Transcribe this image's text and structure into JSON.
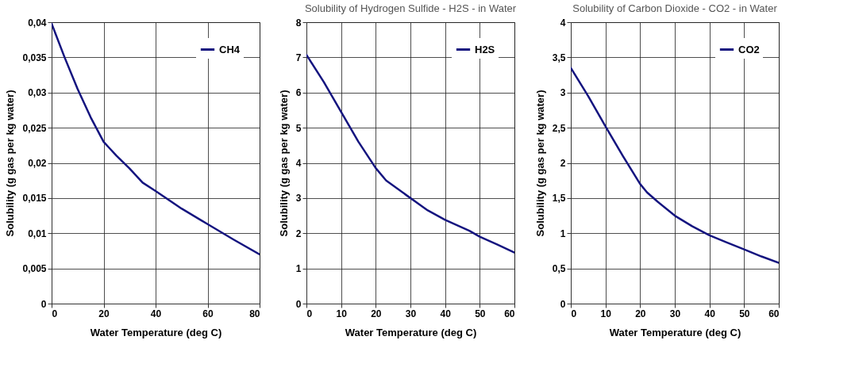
{
  "chart_data": [
    {
      "type": "line",
      "xlabel": "Water Temperature (deg C)",
      "ylabel": "Solubility (g gas per kg water)",
      "xlim": [
        0,
        80
      ],
      "xticks": [
        0,
        20,
        40,
        60,
        80
      ],
      "ylim": [
        0,
        0.04
      ],
      "yticks": [
        0,
        {
          "value": 0.005,
          "label": "0,005"
        },
        {
          "value": 0.01,
          "label": "0,01"
        },
        {
          "value": 0.015,
          "label": "0,015"
        },
        {
          "value": 0.02,
          "label": "0,02"
        },
        {
          "value": 0.025,
          "label": "0,025"
        },
        {
          "value": 0.03,
          "label": "0,03"
        },
        {
          "value": 0.035,
          "label": "0,035"
        },
        {
          "value": 0.04,
          "label": "0,04"
        }
      ],
      "grid": true,
      "legend": "top right",
      "x": [
        0,
        5,
        10,
        15,
        20,
        22,
        25,
        30,
        35,
        40,
        50,
        60,
        70,
        80
      ],
      "series": [
        {
          "name": "CH4",
          "color": "#14147f",
          "values": [
            0.0398,
            0.035,
            0.0305,
            0.0265,
            0.023,
            0.0222,
            0.021,
            0.0192,
            0.0172,
            0.016,
            0.0135,
            0.0113,
            0.0091,
            0.007
          ]
        }
      ]
    },
    {
      "type": "line",
      "title": "Solubility of Hydrogen Sulfide - H2S - in Water",
      "xlabel": "Water Temperature (deg C)",
      "ylabel": "Solubility (g gas per kg water)",
      "xlim": [
        0,
        60
      ],
      "xticks": [
        0,
        10,
        20,
        30,
        40,
        50,
        60
      ],
      "ylim": [
        0,
        8
      ],
      "yticks": [
        0,
        1,
        2,
        3,
        4,
        5,
        6,
        7,
        8
      ],
      "grid": true,
      "legend": "top right",
      "x": [
        0,
        5,
        10,
        15,
        20,
        23,
        30,
        35,
        40,
        47,
        50,
        55,
        60
      ],
      "series": [
        {
          "name": "H2S",
          "color": "#14147f",
          "values": [
            7.07,
            6.3,
            5.45,
            4.6,
            3.85,
            3.5,
            3.0,
            2.65,
            2.38,
            2.07,
            1.9,
            1.68,
            1.45
          ]
        }
      ]
    },
    {
      "type": "line",
      "title": "Solubility of Carbon Dioxide - CO2 - in Water",
      "xlabel": "Water Temperature (deg C)",
      "ylabel": "Solubility (g gas per kg water)",
      "xlim": [
        0,
        60
      ],
      "xticks": [
        0,
        10,
        20,
        30,
        40,
        50,
        60
      ],
      "ylim": [
        0,
        4
      ],
      "yticks": [
        0,
        {
          "value": 0.5,
          "label": "0,5"
        },
        1,
        {
          "value": 1.5,
          "label": "1,5"
        },
        2,
        {
          "value": 2.5,
          "label": "2,5"
        },
        3,
        {
          "value": 3.5,
          "label": "3,5"
        },
        4
      ],
      "grid": true,
      "legend": "top right",
      "x": [
        0,
        5,
        10,
        15,
        20,
        22,
        25,
        30,
        35,
        40,
        45,
        50,
        55,
        60
      ],
      "series": [
        {
          "name": "CO2",
          "color": "#14147f",
          "values": [
            3.35,
            2.95,
            2.52,
            2.1,
            1.7,
            1.58,
            1.45,
            1.25,
            1.1,
            0.97,
            0.87,
            0.77,
            0.67,
            0.58
          ]
        }
      ]
    }
  ]
}
